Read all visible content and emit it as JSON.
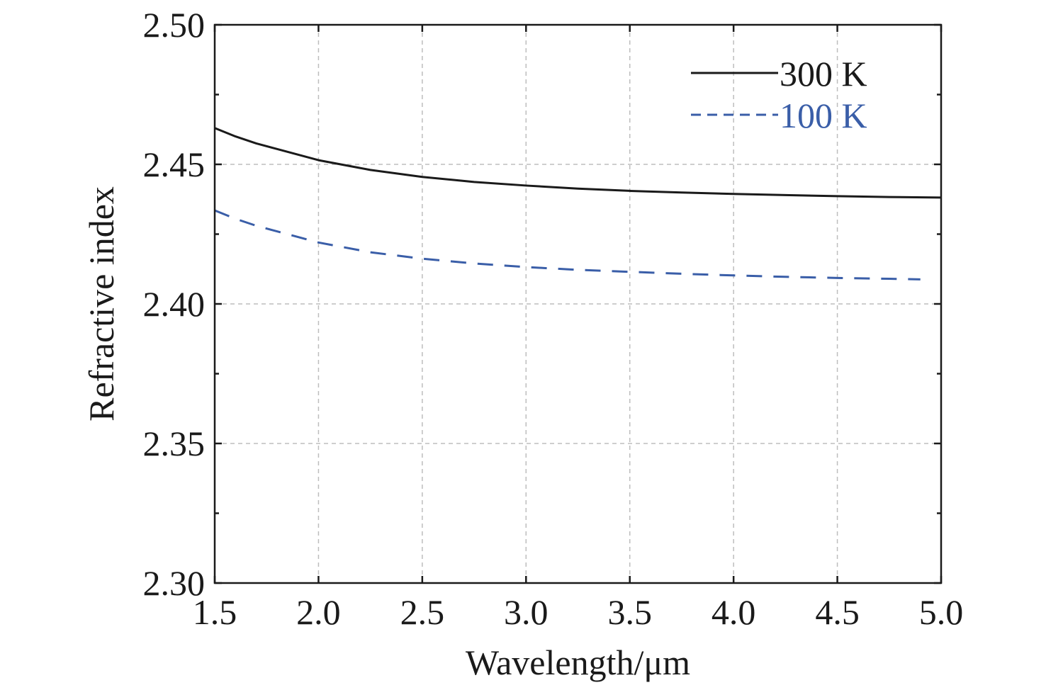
{
  "chart_data": {
    "type": "line",
    "title": "",
    "xlabel": "Wavelength/μm",
    "ylabel": "Refractive index",
    "xlim": [
      1.5,
      5.0
    ],
    "ylim": [
      2.3,
      2.5
    ],
    "xticks": [
      "1.5",
      "2.0",
      "2.5",
      "3.0",
      "3.5",
      "4.0",
      "4.5",
      "5.0"
    ],
    "yticks": [
      "2.30",
      "2.35",
      "2.40",
      "2.45",
      "2.50"
    ],
    "grid": true,
    "legend_position": "top-right",
    "series": [
      {
        "name": "300 K",
        "color": "#1a1a1a",
        "style": "solid",
        "x": [
          1.5,
          1.6,
          1.7,
          1.8,
          1.9,
          2.0,
          2.25,
          2.5,
          2.75,
          3.0,
          3.25,
          3.5,
          3.75,
          4.0,
          4.25,
          4.5,
          4.75,
          5.0
        ],
        "y": [
          2.463,
          2.46,
          2.4575,
          2.4555,
          2.4535,
          2.4515,
          2.448,
          2.4455,
          2.4437,
          2.4424,
          2.4413,
          2.4405,
          2.4399,
          2.4394,
          2.439,
          2.4386,
          2.4383,
          2.4381
        ]
      },
      {
        "name": "100 K",
        "color": "#3a5ea8",
        "style": "dashed",
        "x": [
          1.5,
          1.6,
          1.7,
          1.8,
          1.9,
          2.0,
          2.25,
          2.5,
          2.75,
          3.0,
          3.25,
          3.5,
          3.75,
          4.0,
          4.25,
          4.5,
          4.75,
          4.9
        ],
        "y": [
          2.4335,
          2.4305,
          2.428,
          2.426,
          2.424,
          2.422,
          2.4185,
          2.4162,
          2.4145,
          2.4132,
          2.4122,
          2.4115,
          2.4108,
          2.4102,
          2.4097,
          2.4093,
          2.409,
          2.4088
        ]
      }
    ]
  }
}
